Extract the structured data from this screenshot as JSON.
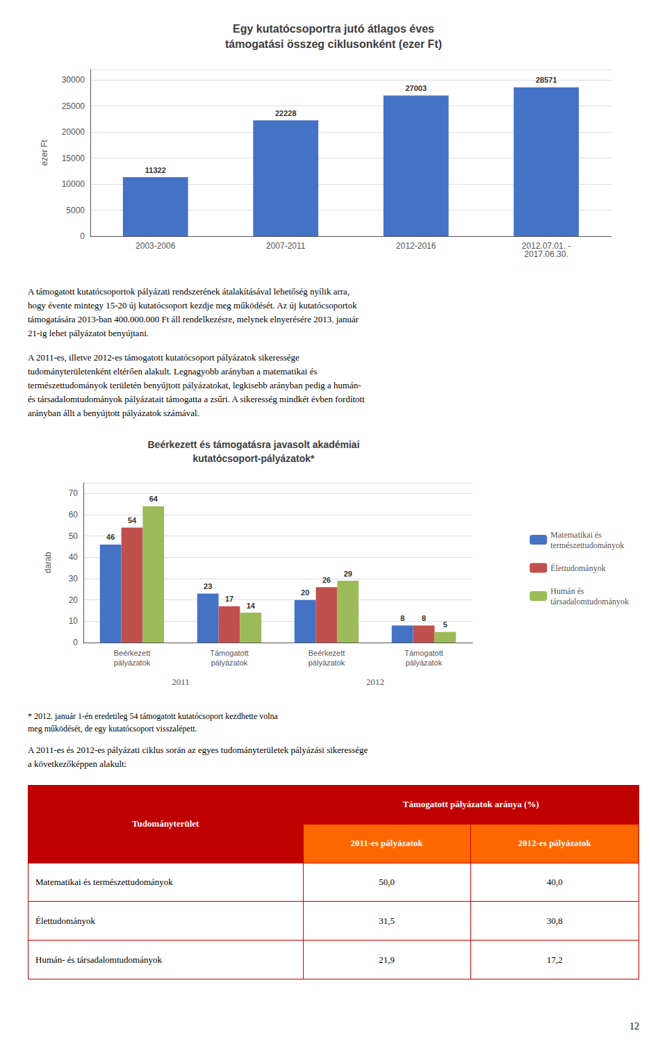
{
  "chart_data": [
    {
      "type": "bar",
      "title": "Egy kutatócsoportra jutó átlagos éves\ntámogatási összeg ciklusonként (ezer Ft)",
      "categories": [
        "2003-2006",
        "2007-2011",
        "2012-2016",
        "2012.07.01. -\n2017.06.30."
      ],
      "values": [
        11322,
        22228,
        27003,
        28571
      ],
      "color": "#4472C4",
      "ylabel": "ezer Ft",
      "ylim": [
        0,
        32000
      ],
      "yticks": [
        0,
        5000,
        10000,
        15000,
        20000,
        25000,
        30000
      ],
      "grid": true,
      "data_labels": true
    },
    {
      "type": "bar",
      "title": "Beérkezett és támogatásra javasolt akadémiai\nkutatócsoport-pályázatok*",
      "categories": [
        "Beérkezett\npályázatok",
        "Támogatott\npályázatok",
        "Beérkezett\npályázatok",
        "Támogatott\npályázatok"
      ],
      "annotations": [
        "2011",
        "2012"
      ],
      "series": [
        {
          "name": "Matematikai és\ntermészettudományok",
          "color": "#4472C4",
          "values": [
            46,
            23,
            20,
            8
          ]
        },
        {
          "name": "Élettudományok",
          "color": "#C0504D",
          "values": [
            54,
            17,
            26,
            8
          ]
        },
        {
          "name": "Humán és\ntársadalomtudományok",
          "color": "#9BBB59",
          "values": [
            64,
            14,
            29,
            5
          ]
        }
      ],
      "ylabel": "darab",
      "ylim": [
        0,
        75
      ],
      "yticks": [
        0,
        10,
        20,
        30,
        40,
        50,
        60,
        70
      ],
      "grid": true,
      "legend": "right",
      "data_labels": true
    },
    {
      "type": "table",
      "col0_header": "Tudományterület",
      "header_main": "Támogatott pályázatok aránya (%)",
      "header_sub": [
        "2011-es pályázatok",
        "2012-es pályázatok"
      ],
      "rows": [
        [
          "Matematikai és természettudományok",
          "50,0",
          "40,0"
        ],
        [
          "Élettudományok",
          "31,5",
          "30,8"
        ],
        [
          "Humán- és társadalomtudományok",
          "21,9",
          "17,2"
        ]
      ],
      "colors": [
        "#C00000",
        "#FF6600"
      ]
    }
  ],
  "annotations": [
    "A támogatott kutatócsoportok pályázati rendszerének átalakításával lehetőség nyílik arra,\nhogy évente mintegy 15-20 új kutatócsoport kezdje meg működését. Az új kutatócsoportok\ntámogatására 2013-ban 400.000.000 Ft áll rendelkezésre, melynek elnyerésére 2013. január\n21-ig lehet pályázatot benyújtani.",
    "A 2011-es, illetve 2012-es támogatott kutatócsoport pályázatok sikeressége\ntudományterületenként eltérően alakult. Legnagyobb arányban a matematikai és\ntermészettudományok területén benyújtott pályázatokat, legkisebb arányban pedig a humán-\nés társadalomtudományok pályázatait támogatta a zsűri. A sikeresség mindkét évben fordított\narányban állt a benyújtott pályázatok számával.",
    "* 2012. január 1-én eredetileg 54 támogatott kutatócsoport kezdhette volna\nmeg működését, de egy kutatócsoport visszalépett.",
    "A 2011-es és 2012-es pályázati ciklus során az egyes tudományterületek pályázási sikeressége\na következőképpen alakult:",
    "12"
  ]
}
